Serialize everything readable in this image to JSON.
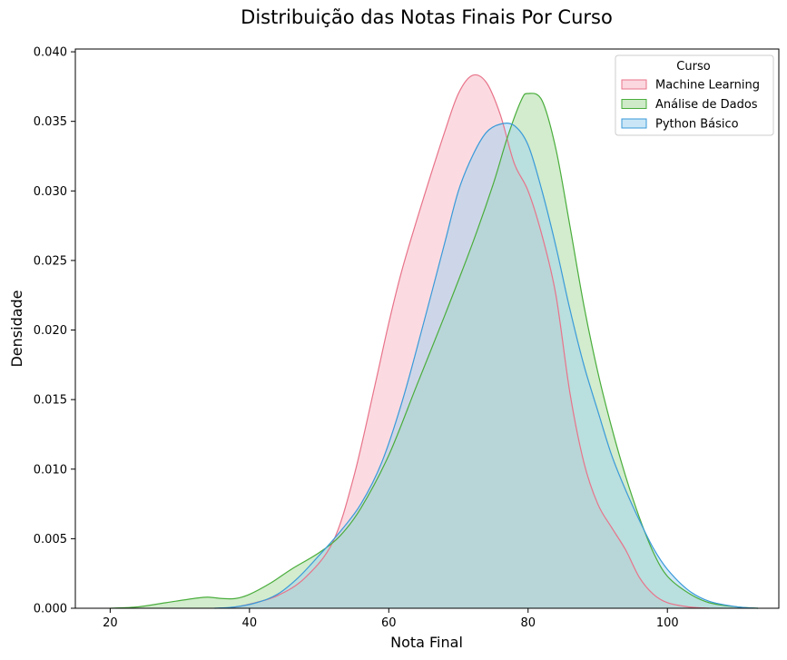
{
  "chart_data": {
    "type": "area",
    "title": "Distribuição das Notas Finais Por Curso",
    "xlabel": "Nota Final",
    "ylabel": "Densidade",
    "xlim": [
      15,
      116
    ],
    "ylim": [
      0,
      0.0402
    ],
    "x_ticks": [
      20,
      40,
      60,
      80,
      100
    ],
    "x_tick_labels": [
      "20",
      "40",
      "60",
      "80",
      "100"
    ],
    "y_ticks": [
      0,
      0.005,
      0.01,
      0.015,
      0.02,
      0.025,
      0.03,
      0.035,
      0.04
    ],
    "y_tick_labels": [
      "0.000",
      "0.005",
      "0.010",
      "0.015",
      "0.020",
      "0.025",
      "0.030",
      "0.035",
      "0.040"
    ],
    "grid": false,
    "legend": {
      "title": "Curso",
      "placement": "top-right"
    },
    "series": [
      {
        "name": "Machine Learning",
        "line_color": "#e8738a",
        "fill_color": "#f7b7c4",
        "points": [
          [
            37,
            0
          ],
          [
            40,
            0.0003
          ],
          [
            44,
            0.0009
          ],
          [
            48,
            0.0022
          ],
          [
            52,
            0.0048
          ],
          [
            55,
            0.0095
          ],
          [
            58,
            0.016
          ],
          [
            60,
            0.0205
          ],
          [
            62,
            0.0245
          ],
          [
            65,
            0.0295
          ],
          [
            68,
            0.0342
          ],
          [
            70,
            0.037
          ],
          [
            72,
            0.0383
          ],
          [
            74,
            0.0378
          ],
          [
            76,
            0.0355
          ],
          [
            78,
            0.032
          ],
          [
            80,
            0.03
          ],
          [
            82,
            0.0268
          ],
          [
            84,
            0.0225
          ],
          [
            86,
            0.0155
          ],
          [
            88,
            0.0105
          ],
          [
            90,
            0.0075
          ],
          [
            92,
            0.0058
          ],
          [
            94,
            0.0042
          ],
          [
            96,
            0.0022
          ],
          [
            98,
            0.001
          ],
          [
            100,
            0.0004
          ],
          [
            103,
            0.0001
          ],
          [
            106,
            0
          ]
        ]
      },
      {
        "name": "Análise de Dados",
        "line_color": "#4aad3c",
        "fill_color": "#a6d99b",
        "points": [
          [
            20,
            0
          ],
          [
            24,
            0.0001
          ],
          [
            28,
            0.0004
          ],
          [
            32,
            0.0007
          ],
          [
            34,
            0.0008
          ],
          [
            36,
            0.0007
          ],
          [
            38,
            0.0007
          ],
          [
            40,
            0.001
          ],
          [
            43,
            0.0018
          ],
          [
            46,
            0.0028
          ],
          [
            50,
            0.004
          ],
          [
            53,
            0.0052
          ],
          [
            56,
            0.0072
          ],
          [
            60,
            0.011
          ],
          [
            64,
            0.016
          ],
          [
            68,
            0.021
          ],
          [
            72,
            0.0262
          ],
          [
            75,
            0.0305
          ],
          [
            77,
            0.0338
          ],
          [
            79,
            0.0365
          ],
          [
            80,
            0.037
          ],
          [
            82,
            0.0365
          ],
          [
            84,
            0.033
          ],
          [
            86,
            0.0275
          ],
          [
            88,
            0.0218
          ],
          [
            90,
            0.017
          ],
          [
            92,
            0.013
          ],
          [
            94,
            0.0095
          ],
          [
            96,
            0.0065
          ],
          [
            98,
            0.004
          ],
          [
            100,
            0.0023
          ],
          [
            103,
            0.0011
          ],
          [
            106,
            0.0004
          ],
          [
            110,
            0.0001
          ],
          [
            113,
            0
          ]
        ]
      },
      {
        "name": "Python Básico",
        "line_color": "#3a9ad9",
        "fill_color": "#9fd1ef",
        "points": [
          [
            35,
            0
          ],
          [
            38,
            0.0001
          ],
          [
            41,
            0.0004
          ],
          [
            44,
            0.001
          ],
          [
            47,
            0.0022
          ],
          [
            50,
            0.0038
          ],
          [
            53,
            0.0055
          ],
          [
            56,
            0.0075
          ],
          [
            59,
            0.0105
          ],
          [
            62,
            0.015
          ],
          [
            65,
            0.0205
          ],
          [
            68,
            0.0262
          ],
          [
            70,
            0.03
          ],
          [
            72,
            0.0325
          ],
          [
            74,
            0.0342
          ],
          [
            76,
            0.0348
          ],
          [
            78,
            0.0347
          ],
          [
            80,
            0.0333
          ],
          [
            82,
            0.03
          ],
          [
            84,
            0.026
          ],
          [
            86,
            0.0215
          ],
          [
            88,
            0.0175
          ],
          [
            90,
            0.0142
          ],
          [
            92,
            0.011
          ],
          [
            94,
            0.0085
          ],
          [
            96,
            0.0063
          ],
          [
            98,
            0.0043
          ],
          [
            100,
            0.0028
          ],
          [
            103,
            0.0013
          ],
          [
            106,
            0.0005
          ],
          [
            110,
            0.0001
          ],
          [
            113,
            0
          ]
        ]
      }
    ]
  }
}
